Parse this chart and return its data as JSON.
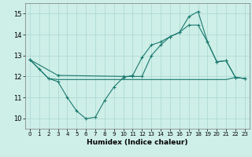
{
  "xlabel": "Humidex (Indice chaleur)",
  "bg_color": "#ceeee8",
  "line_color": "#1a7a6e",
  "grid_color": "#a8d8d0",
  "xlim": [
    -0.5,
    23.5
  ],
  "ylim": [
    9.5,
    15.5
  ],
  "xticks": [
    0,
    1,
    2,
    3,
    4,
    5,
    6,
    7,
    8,
    9,
    10,
    11,
    12,
    13,
    14,
    15,
    16,
    17,
    18,
    19,
    20,
    21,
    22,
    23
  ],
  "yticks": [
    10,
    11,
    12,
    13,
    14,
    15
  ],
  "line1_x": [
    0,
    1,
    2,
    3,
    4,
    5,
    6,
    7,
    8,
    9,
    10,
    11,
    12,
    13,
    14,
    15,
    16,
    17,
    18,
    19,
    20,
    21,
    22,
    23
  ],
  "line1_y": [
    12.8,
    12.35,
    11.9,
    11.75,
    11.0,
    10.35,
    9.98,
    10.05,
    10.85,
    11.5,
    11.95,
    12.05,
    12.9,
    13.5,
    13.65,
    13.9,
    14.1,
    14.85,
    15.1,
    13.65,
    12.7,
    12.75,
    11.95,
    11.9
  ],
  "line2_x": [
    0,
    3,
    10,
    11,
    12,
    13,
    14,
    15,
    16,
    17,
    18,
    19,
    20,
    21,
    22,
    23
  ],
  "line2_y": [
    12.8,
    12.05,
    12.0,
    12.0,
    12.0,
    13.0,
    13.5,
    13.9,
    14.1,
    14.45,
    14.45,
    13.65,
    12.7,
    12.75,
    11.95,
    11.9
  ],
  "line3_x": [
    0,
    1,
    2,
    3,
    4,
    5,
    6,
    7,
    8,
    9,
    10,
    11,
    12,
    13,
    14,
    15,
    16,
    17,
    18,
    19,
    20,
    21,
    22,
    23
  ],
  "line3_y": [
    12.8,
    12.35,
    11.9,
    11.85,
    11.85,
    11.85,
    11.85,
    11.85,
    11.85,
    11.85,
    11.85,
    11.85,
    11.85,
    11.85,
    11.85,
    11.85,
    11.85,
    11.85,
    11.85,
    11.85,
    11.85,
    11.85,
    11.95,
    11.9
  ]
}
